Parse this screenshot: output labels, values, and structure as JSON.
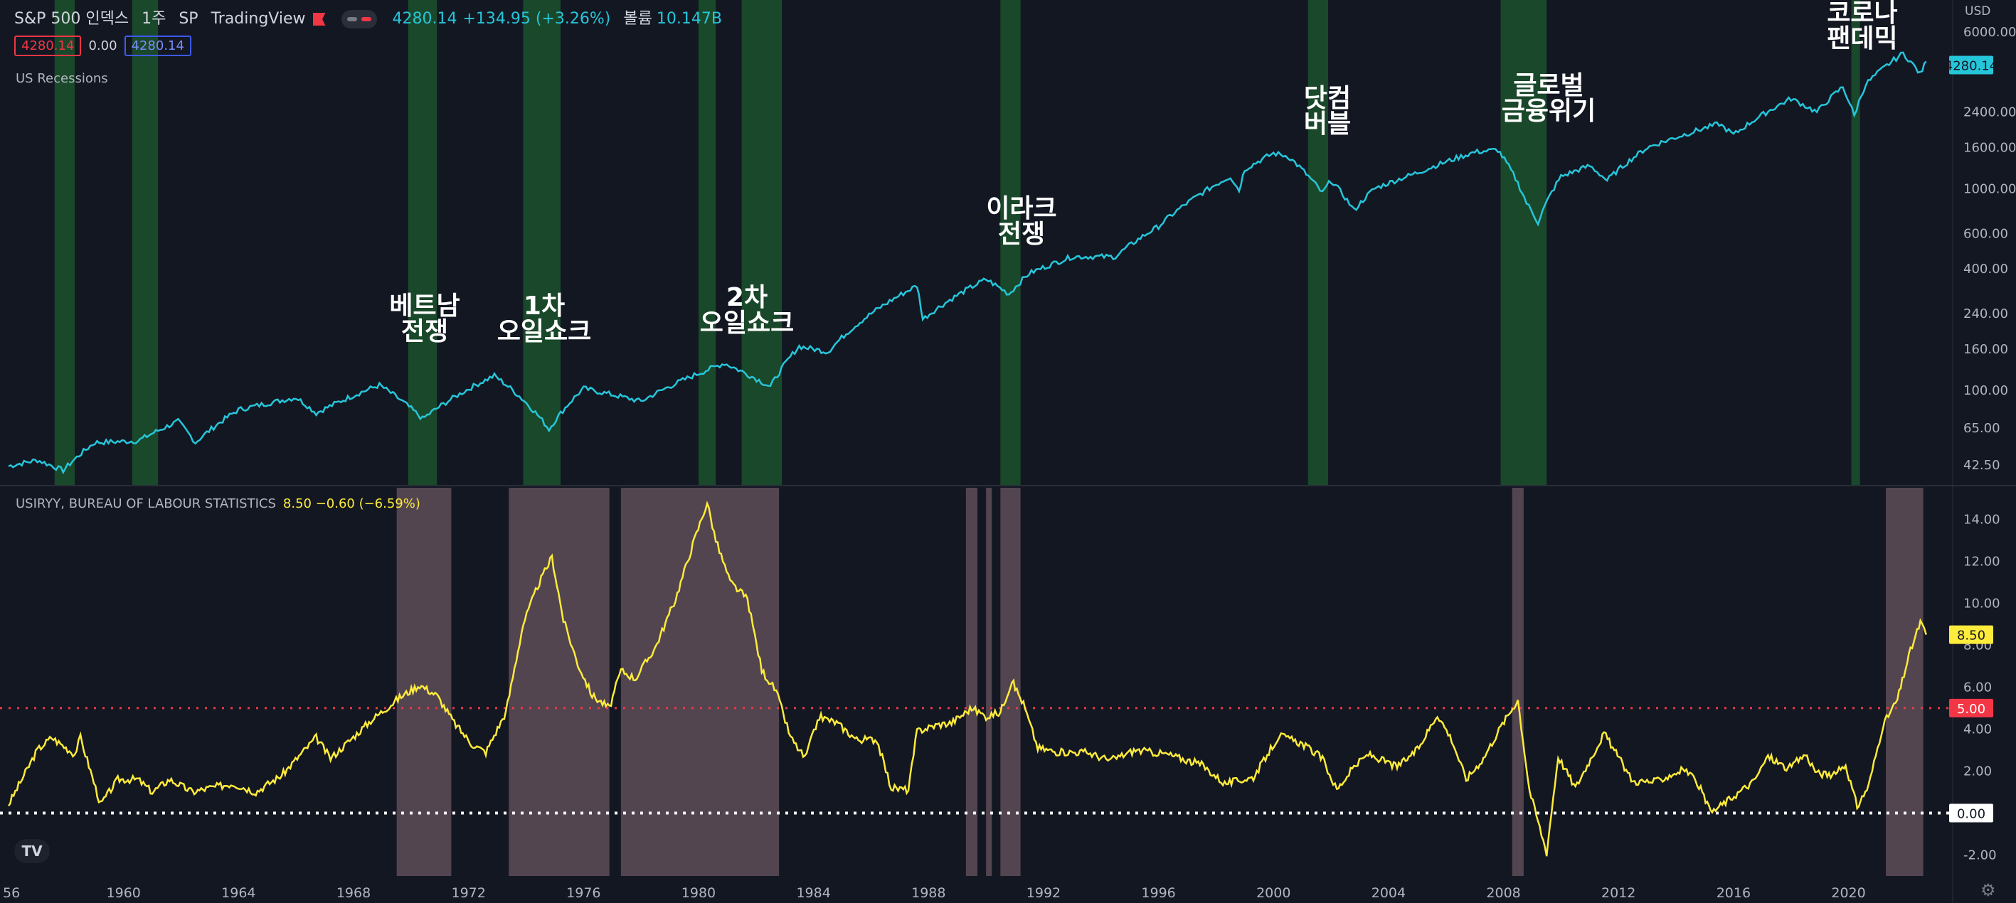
{
  "header": {
    "symbol": "S&P 500 인덱스",
    "interval": "1주",
    "exchange": "SP",
    "brand": "TradingView",
    "last": "4280.14",
    "change": "+134.95 (+3.26%)",
    "volume_label": "볼륨",
    "volume": "10.147B",
    "ohlc_left": "4280.14",
    "ohlc_mid": "0.00",
    "ohlc_right": "4280.14",
    "currency": "USD"
  },
  "legend": {
    "recessions": "US Recessions",
    "indicator": "USIRYY, BUREAU OF LABOUR STATISTICS",
    "indicator_value": "8.50 −0.60 (−6.59%)"
  },
  "logo": "TV",
  "colors": {
    "price_line": "#26c6da",
    "inflation_line": "#ffeb3b",
    "recession_band": "#1e5a2e",
    "inflation_band": "#5a4a55",
    "threshold": "#f23645"
  },
  "chart_data": [
    {
      "type": "line",
      "scale": "log",
      "series": [
        {
          "name": "S&P 500 인덱스",
          "points": [
            [
              1956,
              42
            ],
            [
              1957,
              45
            ],
            [
              1957.9,
              40
            ],
            [
              1959,
              55
            ],
            [
              1960.5,
              56
            ],
            [
              1961.9,
              70
            ],
            [
              1962.5,
              55
            ],
            [
              1964,
              80
            ],
            [
              1966,
              92
            ],
            [
              1966.7,
              77
            ],
            [
              1968.9,
              106
            ],
            [
              1970.4,
              72
            ],
            [
              1972.9,
              118
            ],
            [
              1974.8,
              64
            ],
            [
              1976,
              102
            ],
            [
              1978,
              88
            ],
            [
              1980.9,
              136
            ],
            [
              1982.5,
              104
            ],
            [
              1983.5,
              165
            ],
            [
              1984.5,
              155
            ],
            [
              1987.6,
              330
            ],
            [
              1987.8,
              225
            ],
            [
              1990,
              355
            ],
            [
              1990.8,
              300
            ],
            [
              1991.5,
              380
            ],
            [
              1993,
              460
            ],
            [
              1994.5,
              460
            ],
            [
              1996,
              650
            ],
            [
              1998.5,
              1150
            ],
            [
              1998.8,
              980
            ],
            [
              1999,
              1250
            ],
            [
              2000,
              1500
            ],
            [
              2000.5,
              1450
            ],
            [
              2001.7,
              950
            ],
            [
              2002,
              1100
            ],
            [
              2002.8,
              780
            ],
            [
              2003.5,
              1000
            ],
            [
              2005,
              1200
            ],
            [
              2007,
              1520
            ],
            [
              2007.8,
              1560
            ],
            [
              2008.8,
              850
            ],
            [
              2009.2,
              680
            ],
            [
              2010,
              1150
            ],
            [
              2011,
              1300
            ],
            [
              2011.6,
              1100
            ],
            [
              2013,
              1600
            ],
            [
              2015.5,
              2100
            ],
            [
              2016,
              1850
            ],
            [
              2018,
              2800
            ],
            [
              2018.9,
              2400
            ],
            [
              2019.8,
              3200
            ],
            [
              2020.2,
              2300
            ],
            [
              2020.6,
              3300
            ],
            [
              2021.9,
              4700
            ],
            [
              2022.5,
              3700
            ],
            [
              2022.7,
              4280
            ]
          ]
        }
      ],
      "recessions": [
        [
          1957.6,
          1958.3
        ],
        [
          1960.3,
          1961.2
        ],
        [
          1969.9,
          1970.9
        ],
        [
          1973.9,
          1975.2
        ],
        [
          1980.0,
          1980.6
        ],
        [
          1981.5,
          1982.9
        ],
        [
          1990.5,
          1991.2
        ],
        [
          2001.2,
          2001.9
        ],
        [
          2007.9,
          2009.5
        ],
        [
          2020.1,
          2020.4
        ]
      ],
      "ylim": [
        35,
        7000
      ],
      "yticks": [
        "6000.00",
        "2400.00",
        "1600.00",
        "1000.00",
        "600.00",
        "400.00",
        "240.00",
        "160.00",
        "100.00",
        "65.00",
        "42.50"
      ],
      "last_label": "4280.14",
      "annotations": [
        {
          "lines": [
            "코로나",
            "팬데믹"
          ]
        },
        {
          "lines": [
            "닷컴",
            "버블"
          ]
        },
        {
          "lines": [
            "글로벌",
            "금융위기"
          ]
        },
        {
          "lines": [
            "이라크",
            "전쟁"
          ]
        },
        {
          "lines": [
            "베트남",
            "전쟁"
          ]
        },
        {
          "lines": [
            "1차",
            "오일쇼크"
          ]
        },
        {
          "lines": [
            "2차",
            "오일쇼크"
          ]
        }
      ]
    },
    {
      "type": "line",
      "series": [
        {
          "name": "USIRYY",
          "points": [
            [
              1956,
              0.4
            ],
            [
              1957,
              3.0
            ],
            [
              1957.5,
              3.6
            ],
            [
              1958.3,
              2.8
            ],
            [
              1958.5,
              3.6
            ],
            [
              1959.2,
              0.4
            ],
            [
              1959.8,
              1.6
            ],
            [
              1960.5,
              1.6
            ],
            [
              1961,
              1.0
            ],
            [
              1961.6,
              1.6
            ],
            [
              1962.4,
              1.0
            ],
            [
              1963,
              1.2
            ],
            [
              1963.8,
              1.4
            ],
            [
              1964.6,
              1.0
            ],
            [
              1965.5,
              1.8
            ],
            [
              1966.7,
              3.6
            ],
            [
              1967.2,
              2.6
            ],
            [
              1968.6,
              4.4
            ],
            [
              1969.6,
              5.5
            ],
            [
              1970.3,
              6.1
            ],
            [
              1970.9,
              5.6
            ],
            [
              1971.5,
              4.3
            ],
            [
              1972.1,
              3.3
            ],
            [
              1972.6,
              2.9
            ],
            [
              1973.3,
              4.8
            ],
            [
              1973.9,
              9.0
            ],
            [
              1974.4,
              10.8
            ],
            [
              1974.9,
              12.2
            ],
            [
              1975.3,
              9.2
            ],
            [
              1975.8,
              7.1
            ],
            [
              1976.3,
              5.6
            ],
            [
              1976.9,
              5.0
            ],
            [
              1977.3,
              6.8
            ],
            [
              1977.8,
              6.4
            ],
            [
              1978.5,
              7.9
            ],
            [
              1979.2,
              10.2
            ],
            [
              1979.8,
              12.8
            ],
            [
              1980.3,
              14.8
            ],
            [
              1980.6,
              13.0
            ],
            [
              1981.1,
              11.0
            ],
            [
              1981.7,
              10.2
            ],
            [
              1982.2,
              6.8
            ],
            [
              1982.7,
              5.8
            ],
            [
              1983.2,
              3.6
            ],
            [
              1983.7,
              2.6
            ],
            [
              1984.2,
              4.6
            ],
            [
              1984.8,
              4.3
            ],
            [
              1985.5,
              3.5
            ],
            [
              1986.2,
              3.5
            ],
            [
              1986.7,
              1.2
            ],
            [
              1987.3,
              1.1
            ],
            [
              1987.6,
              3.9
            ],
            [
              1988.3,
              4.2
            ],
            [
              1988.8,
              4.3
            ],
            [
              1989.5,
              5.0
            ],
            [
              1990.0,
              4.6
            ],
            [
              1990.5,
              4.8
            ],
            [
              1990.9,
              6.3
            ],
            [
              1991.3,
              5.2
            ],
            [
              1991.8,
              3.1
            ],
            [
              1992.5,
              2.9
            ],
            [
              1993.5,
              2.9
            ],
            [
              1994.3,
              2.5
            ],
            [
              1995.2,
              3.0
            ],
            [
              1996.3,
              2.8
            ],
            [
              1997.5,
              2.3
            ],
            [
              1998.3,
              1.4
            ],
            [
              1999.3,
              1.7
            ],
            [
              2000.2,
              3.7
            ],
            [
              2001,
              3.3
            ],
            [
              2001.7,
              2.6
            ],
            [
              2002.2,
              1.1
            ],
            [
              2002.8,
              2.2
            ],
            [
              2003.3,
              2.8
            ],
            [
              2004.3,
              2.2
            ],
            [
              2005,
              3.0
            ],
            [
              2005.7,
              4.7
            ],
            [
              2006.2,
              3.5
            ],
            [
              2006.7,
              1.6
            ],
            [
              2007.3,
              2.6
            ],
            [
              2007.9,
              4.1
            ],
            [
              2008.5,
              5.4
            ],
            [
              2008.9,
              1.1
            ],
            [
              2009.5,
              -1.9
            ],
            [
              2009.9,
              2.7
            ],
            [
              2010.5,
              1.2
            ],
            [
              2011.5,
              3.8
            ],
            [
              2012.5,
              1.5
            ],
            [
              2013.3,
              1.5
            ],
            [
              2014.3,
              2.1
            ],
            [
              2014.8,
              1.3
            ],
            [
              2015.2,
              0.0
            ],
            [
              2015.9,
              0.7
            ],
            [
              2016.7,
              1.5
            ],
            [
              2017.2,
              2.7
            ],
            [
              2017.9,
              2.1
            ],
            [
              2018.5,
              2.8
            ],
            [
              2018.9,
              1.9
            ],
            [
              2019.5,
              1.8
            ],
            [
              2019.9,
              2.3
            ],
            [
              2020.3,
              0.3
            ],
            [
              2020.7,
              1.3
            ],
            [
              2021.2,
              4.2
            ],
            [
              2021.7,
              5.4
            ],
            [
              2022.1,
              7.5
            ],
            [
              2022.5,
              9.1
            ],
            [
              2022.7,
              8.5
            ]
          ]
        }
      ],
      "shaded": [
        [
          1969.5,
          1971.4
        ],
        [
          1973.4,
          1976.9
        ],
        [
          1977.3,
          1982.8
        ],
        [
          1989.3,
          1989.7
        ],
        [
          1990.0,
          1990.2
        ],
        [
          1990.5,
          1991.2
        ],
        [
          2008.3,
          2008.7
        ],
        [
          2021.3,
          2022.6
        ]
      ],
      "ylim": [
        -3.0,
        15.5
      ],
      "yticks": [
        "14.00",
        "12.00",
        "10.00",
        "8.00",
        "6.00",
        "4.00",
        "2.00",
        "0.00",
        "-2.00"
      ],
      "reference_lines": [
        5.0,
        0.0
      ],
      "threshold_label": "5.00",
      "zero_label": "0.00",
      "last_label": "8.50"
    }
  ],
  "x_axis": {
    "range": [
      1955.9,
      2023.5
    ],
    "ticks": [
      "56",
      "1960",
      "1964",
      "1968",
      "1972",
      "1976",
      "1980",
      "1984",
      "1988",
      "1992",
      "1996",
      "2000",
      "2004",
      "2008",
      "2012",
      "2016",
      "2020"
    ]
  }
}
